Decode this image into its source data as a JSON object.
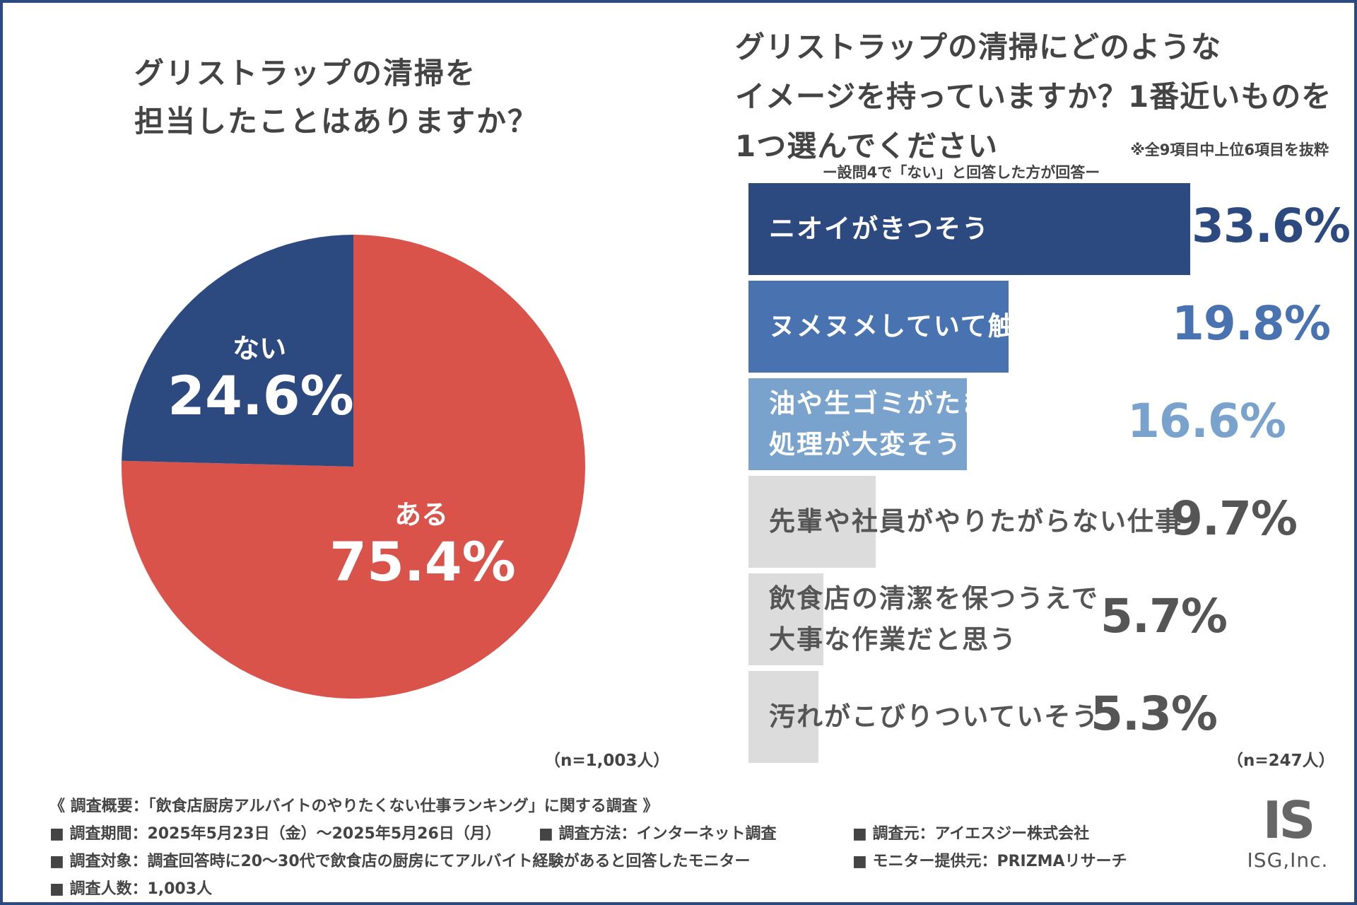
{
  "colors": {
    "red": "#d9534a",
    "navy": "#2d4a80",
    "mid_blue": "#4873b0",
    "light_blue": "#79a3cd",
    "gray_bar": "#dcdcdc",
    "gray_text": "#555555",
    "frame": "#2d4a80"
  },
  "left_question": {
    "line1": "グリストラップの清掃を",
    "line2": "担当したことはありますか？"
  },
  "right_question": {
    "line1": "グリストラップの清掃にどのような",
    "line2": "イメージを持っていますか？1番近いものを",
    "line3": "1つ選んでください",
    "note": "※全9項目中上位6項目を抜粋",
    "sub": "ー設問4で「ない」と回答した方が回答ー"
  },
  "chart_data": [
    {
      "type": "pie",
      "title": "グリストラップの清掃を担当したことはありますか？",
      "categories": [
        "ある",
        "ない"
      ],
      "values": [
        75.4,
        24.6
      ],
      "value_labels": [
        "75.4%",
        "24.6%"
      ],
      "start": "12 o'clock, clockwise",
      "n_label": "（n=1,003人）"
    },
    {
      "type": "bar",
      "orientation": "horizontal",
      "title": "グリストラップの清掃にどのようなイメージを持っていますか？1番近いものを1つ選んでください",
      "categories": [
        [
          "ニオイがきつそう"
        ],
        [
          "ヌメヌメしていて触りたくない"
        ],
        [
          "油や生ゴミがたまっていて",
          "処理が大変そう"
        ],
        [
          "先輩や社員がやりたがらない仕事"
        ],
        [
          "飲食店の清潔を保つうえで",
          "大事な作業だと思う"
        ],
        [
          "汚れがこびりついていそう"
        ]
      ],
      "values": [
        33.6,
        19.8,
        16.6,
        9.7,
        5.7,
        5.3
      ],
      "value_labels": [
        "33.6%",
        "19.8%",
        "16.6%",
        "9.7%",
        "5.7%",
        "5.3%"
      ],
      "xlim": [
        0,
        33.6
      ],
      "n_label": "（n=247人）"
    }
  ],
  "footer": {
    "title": "《 調査概要：「飲食店厨房アルバイトのやりたくない仕事ランキング」に関する調査 》",
    "period": "■ 調査期間：2025年5月23日（金）〜2025年5月26日（月）",
    "method": "■ 調査方法：インターネット調査",
    "source": "■ 調査元：アイエスジー株式会社",
    "target": "■ 調査対象：調査回答時に20〜30代で飲食店の厨房にてアルバイト経験があると回答したモニター",
    "provider": "■ モニター提供元：PRIZMAリサーチ",
    "count": "■ 調査人数：1,003人"
  },
  "logo": {
    "mark": "IS",
    "name": "ISG,Inc."
  }
}
